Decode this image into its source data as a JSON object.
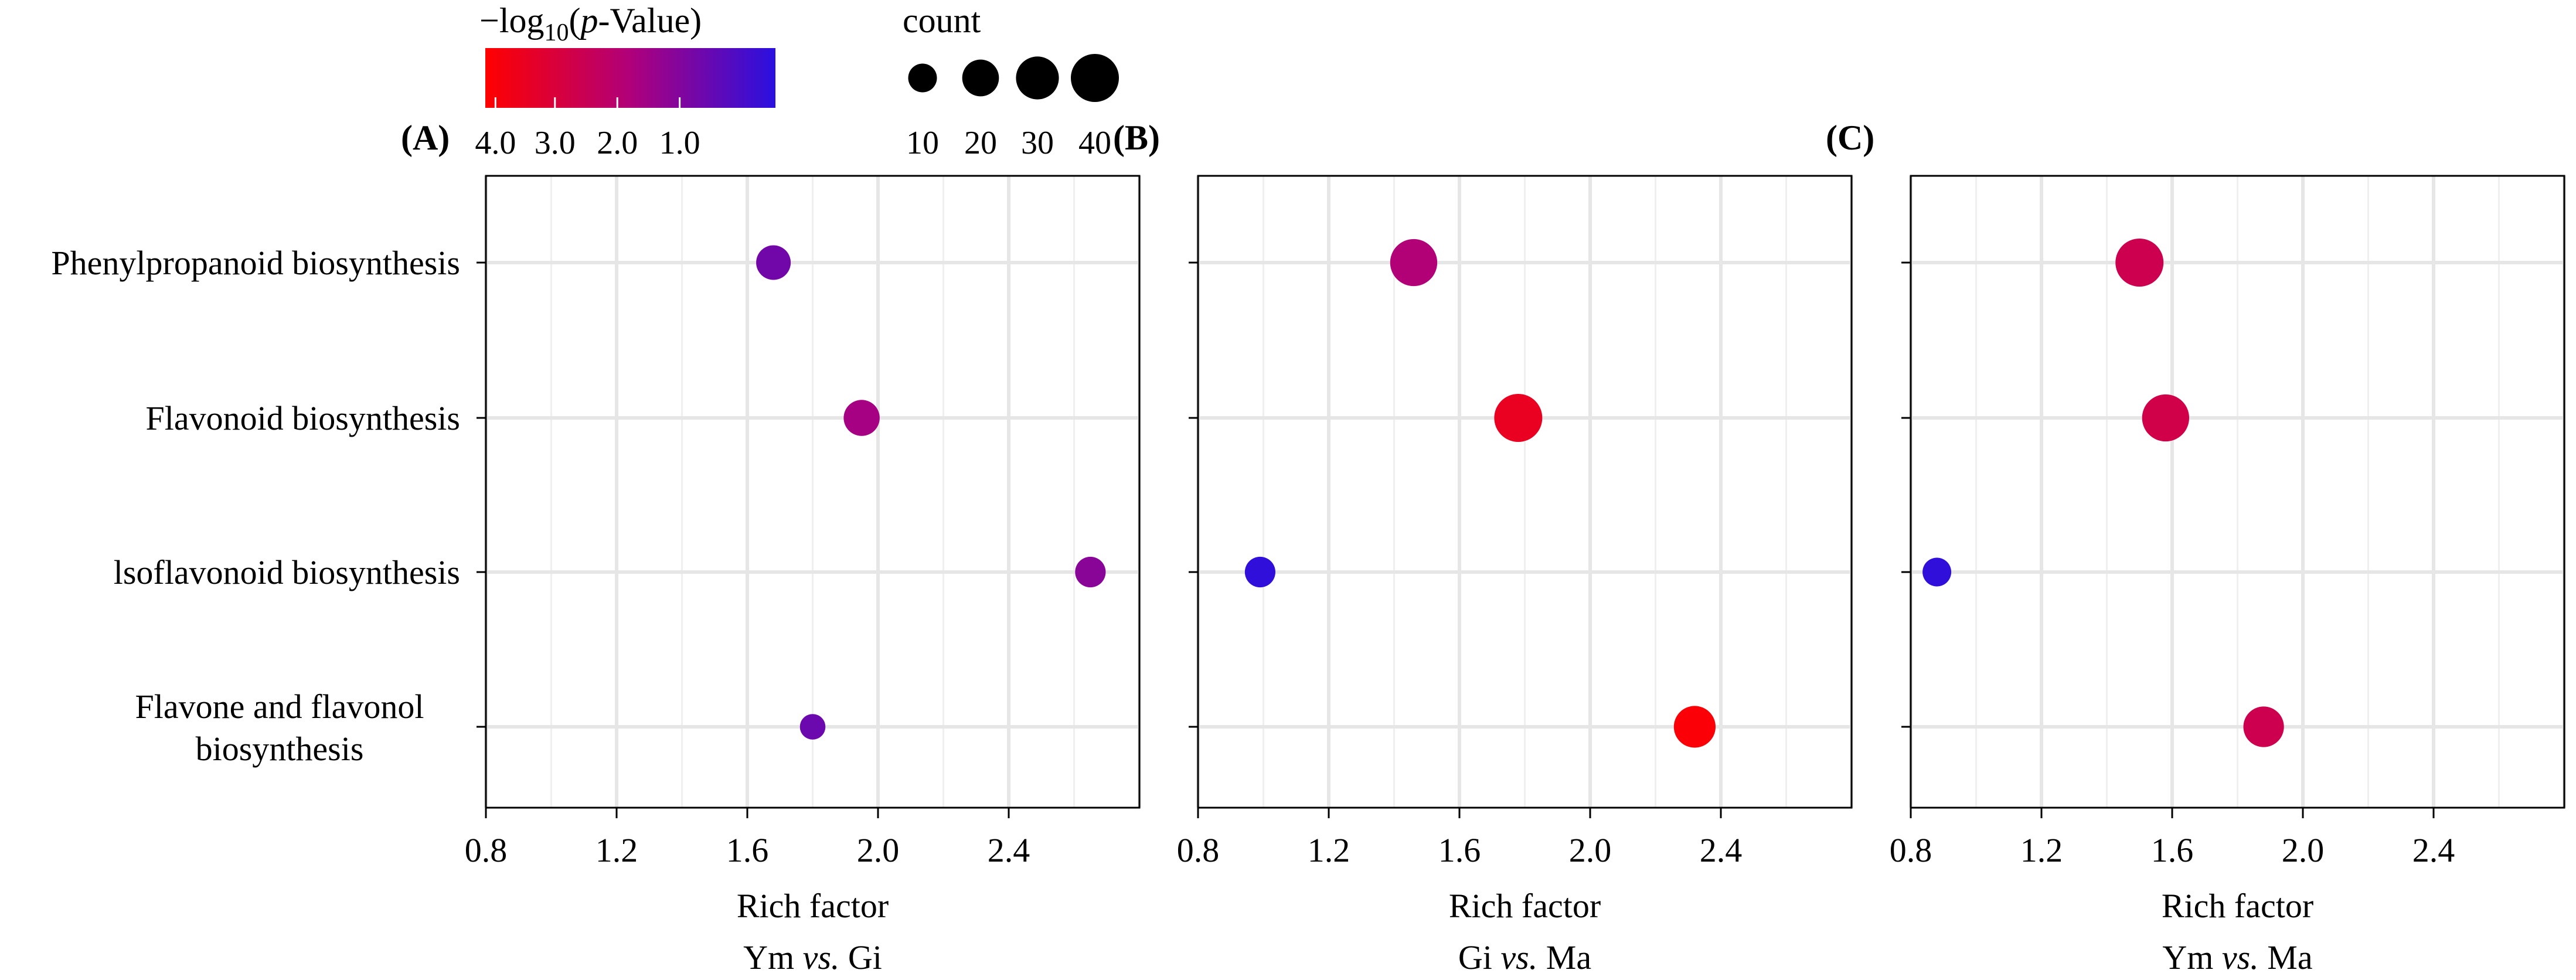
{
  "legend": {
    "color_title": "−log",
    "color_title_sub": "10",
    "color_title_rest": "(",
    "color_title_p": "p",
    "color_title_end": "-Value)",
    "color_ticks": [
      "4.0",
      "3.0",
      "2.0",
      "1.0"
    ],
    "color_tick_values": [
      4.0,
      3.0,
      2.0,
      1.0
    ],
    "color_range": [
      0.5,
      4.2
    ],
    "colors": {
      "high": "#ff0000",
      "mid": "#b0007a",
      "low": "#2a10e0"
    },
    "size_title": "count",
    "size_ticks": [
      "10",
      "20",
      "30",
      "40"
    ],
    "size_values": [
      10,
      20,
      30,
      40
    ]
  },
  "chart_data": [
    {
      "type": "scatter",
      "panel_label": "(A)",
      "xlabel": "Rich factor",
      "comparison": {
        "a": "Ym",
        "vs": "vs.",
        "b": "Gi"
      },
      "xlim": [
        0.8,
        2.8
      ],
      "xticks": [
        0.8,
        1.2,
        1.6,
        2.0,
        2.4
      ],
      "xtick_labels": [
        "0.8",
        "1.2",
        "1.6",
        "2.0",
        "2.4"
      ],
      "categories": [
        "Phenylpropanoid biosynthesis",
        "Flavonoid biosynthesis",
        "lsoflavonoid biosynthesis",
        "Flavone and flavonol biosynthesis"
      ],
      "points": [
        {
          "category": "Phenylpropanoid biosynthesis",
          "rich_factor": 1.68,
          "neg_log10_p": 1.5,
          "count": 17
        },
        {
          "category": "Flavonoid biosynthesis",
          "rich_factor": 1.95,
          "neg_log10_p": 2.2,
          "count": 19
        },
        {
          "category": "lsoflavonoid biosynthesis",
          "rich_factor": 2.65,
          "neg_log10_p": 1.8,
          "count": 12
        },
        {
          "category": "Flavone and flavonol biosynthesis",
          "rich_factor": 1.8,
          "neg_log10_p": 1.4,
          "count": 7
        }
      ]
    },
    {
      "type": "scatter",
      "panel_label": "(B)",
      "xlabel": "Rich factor",
      "comparison": {
        "a": "Gi",
        "vs": "vs.",
        "b": "Ma"
      },
      "xlim": [
        0.8,
        2.8
      ],
      "xticks": [
        0.8,
        1.2,
        1.6,
        2.0,
        2.4
      ],
      "xtick_labels": [
        "0.8",
        "1.2",
        "1.6",
        "2.0",
        "2.4"
      ],
      "categories": [
        "Phenylpropanoid biosynthesis",
        "Flavonoid biosynthesis",
        "lsoflavonoid biosynthesis",
        "Flavone and flavonol biosynthesis"
      ],
      "points": [
        {
          "category": "Phenylpropanoid biosynthesis",
          "rich_factor": 1.46,
          "neg_log10_p": 2.4,
          "count": 38
        },
        {
          "category": "Flavonoid biosynthesis",
          "rich_factor": 1.78,
          "neg_log10_p": 3.7,
          "count": 40
        },
        {
          "category": "lsoflavonoid biosynthesis",
          "rich_factor": 0.99,
          "neg_log10_p": 0.6,
          "count": 12
        },
        {
          "category": "Flavone and flavonol biosynthesis",
          "rich_factor": 2.32,
          "neg_log10_p": 4.1,
          "count": 28
        }
      ]
    },
    {
      "type": "scatter",
      "panel_label": "(C)",
      "xlabel": "Rich factor",
      "comparison": {
        "a": "Ym",
        "vs": "vs.",
        "b": "Ma"
      },
      "xlim": [
        0.8,
        2.8
      ],
      "xticks": [
        0.8,
        1.2,
        1.6,
        2.0,
        2.4
      ],
      "xtick_labels": [
        "0.8",
        "1.2",
        "1.6",
        "2.0",
        "2.4"
      ],
      "categories": [
        "Phenylpropanoid biosynthesis",
        "Flavonoid biosynthesis",
        "lsoflavonoid biosynthesis",
        "Flavone and flavonol biosynthesis"
      ],
      "points": [
        {
          "category": "Phenylpropanoid biosynthesis",
          "rich_factor": 1.5,
          "neg_log10_p": 3.0,
          "count": 40
        },
        {
          "category": "Flavonoid biosynthesis",
          "rich_factor": 1.58,
          "neg_log10_p": 3.1,
          "count": 38
        },
        {
          "category": "lsoflavonoid biosynthesis",
          "rich_factor": 0.88,
          "neg_log10_p": 0.6,
          "count": 10
        },
        {
          "category": "Flavone and flavonol biosynthesis",
          "rich_factor": 1.88,
          "neg_log10_p": 3.0,
          "count": 26
        }
      ]
    }
  ],
  "y_axis": {
    "labels": [
      {
        "lines": [
          "Phenylpropanoid biosynthesis"
        ],
        "color": "#000000"
      },
      {
        "lines": [
          "Flavonoid biosynthesis"
        ],
        "color": "#ff0000"
      },
      {
        "lines": [
          "lsoflavonoid biosynthesis"
        ],
        "color": "#000000"
      },
      {
        "lines": [
          "Flavone and flavonol",
          "biosynthesis"
        ],
        "color": "#ff0000"
      }
    ]
  }
}
